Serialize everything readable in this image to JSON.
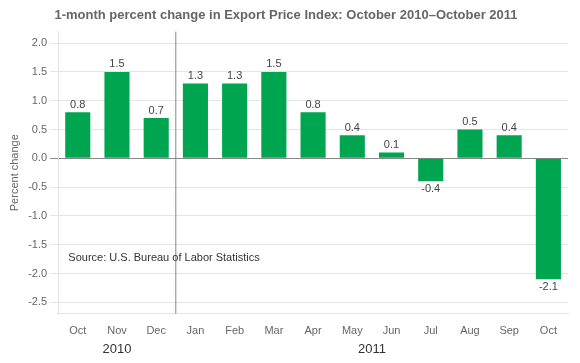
{
  "chart_data": {
    "type": "bar",
    "title": "1-month percent change in Export Price Index: October 2010–October 2011",
    "categories": [
      "Oct",
      "Nov",
      "Dec",
      "Jan",
      "Feb",
      "Mar",
      "Apr",
      "May",
      "Jun",
      "Jul",
      "Aug",
      "Sep",
      "Oct"
    ],
    "groups": [
      "2010",
      "2010",
      "2010",
      "2011",
      "2011",
      "2011",
      "2011",
      "2011",
      "2011",
      "2011",
      "2011",
      "2011",
      "2011"
    ],
    "values": [
      0.8,
      1.5,
      0.7,
      1.3,
      1.3,
      1.5,
      0.8,
      0.4,
      0.1,
      -0.4,
      0.5,
      0.4,
      -2.1
    ],
    "color": "#00A550",
    "ylabel": "Percent change",
    "ylim": [
      -2.7,
      2.2
    ],
    "yticks": [
      -2.5,
      {
        "value": -2,
        "label": "-2.0"
      },
      -1.5,
      {
        "value": -1,
        "label": "-1.0"
      },
      -0.5,
      {
        "value": 0,
        "label": "0.0"
      },
      0.5,
      {
        "value": 1,
        "label": "1.0"
      },
      1.5,
      {
        "value": 2,
        "label": "2.0"
      }
    ],
    "grid": true,
    "data_labels": true,
    "annotations": [
      "Source: U.S. Bureau of Labor Statistics"
    ]
  }
}
